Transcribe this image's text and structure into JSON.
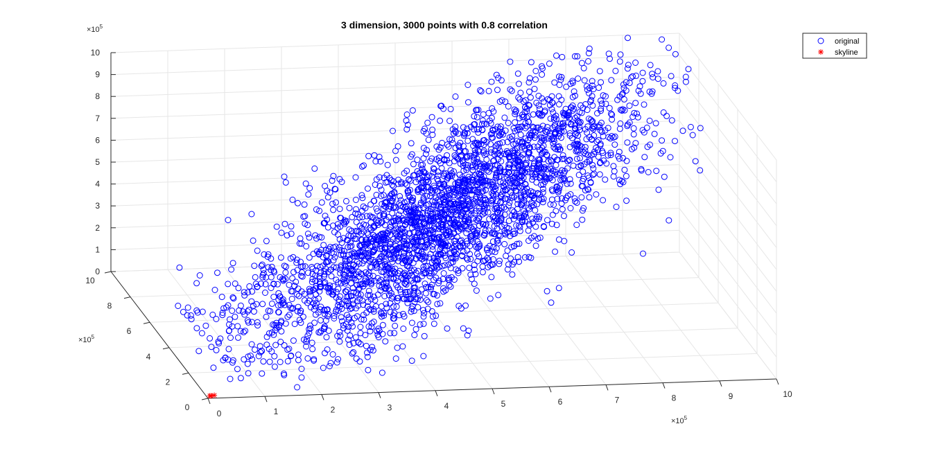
{
  "chart_data": {
    "type": "scatter",
    "title": "3 dimension, 3000 points with 0.8 correlation",
    "xlabel": "",
    "ylabel": "",
    "zlabel": "",
    "xlim": [
      0,
      10
    ],
    "ylim": [
      0,
      10
    ],
    "zlim": [
      0,
      10
    ],
    "axis_multiplier": "×10",
    "axis_multiplier_exponent": "5",
    "x_ticks": [
      "0",
      "1",
      "2",
      "3",
      "4",
      "5",
      "6",
      "7",
      "8",
      "9",
      "10"
    ],
    "y_ticks": [
      "0",
      "2",
      "4",
      "6",
      "8",
      "10"
    ],
    "z_ticks": [
      "0",
      "1",
      "2",
      "3",
      "4",
      "5",
      "6",
      "7",
      "8",
      "9",
      "10"
    ],
    "grid": true,
    "legend_position": "top-right",
    "series": [
      {
        "name": "original",
        "marker": "circle",
        "color": "#0000ff",
        "count": 3000,
        "correlation": 0.8
      },
      {
        "name": "skyline",
        "marker": "asterisk",
        "color": "#ff0000"
      }
    ]
  }
}
